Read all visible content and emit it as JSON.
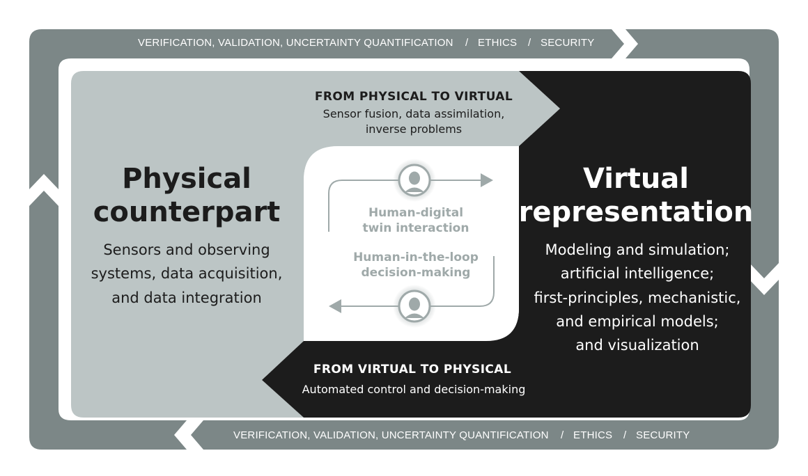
{
  "ring": {
    "top": {
      "item1": "VERIFICATION, VALIDATION, UNCERTAINTY QUANTIFICATION",
      "sep1": "/",
      "item2": "ETHICS",
      "sep2": "/",
      "item3": "SECURITY"
    },
    "bottom": {
      "item1": "VERIFICATION, VALIDATION, UNCERTAINTY QUANTIFICATION",
      "sep1": "/",
      "item2": "ETHICS",
      "sep2": "/",
      "item3": "SECURITY"
    }
  },
  "physical": {
    "title_line1": "Physical",
    "title_line2": "counterpart",
    "desc_line1": "Sensors and observing",
    "desc_line2": "systems, data acquisition,",
    "desc_line3": "and data integration"
  },
  "virtual": {
    "title_line1": "Virtual",
    "title_line2": "representation",
    "desc_line1": "Modeling and simulation;",
    "desc_line2": "artificial intelligence;",
    "desc_line3": "first-principles, mechanistic,",
    "desc_line4": "and empirical models;",
    "desc_line5": "and visualization"
  },
  "to_virtual": {
    "title": "FROM PHYSICAL TO VIRTUAL",
    "sub_line1": "Sensor fusion, data assimilation,",
    "sub_line2": "inverse problems"
  },
  "to_physical": {
    "title": "FROM VIRTUAL TO PHYSICAL",
    "sub_line1": "Automated control and decision-making"
  },
  "center": {
    "interaction_line1": "Human-digital",
    "interaction_line2": "twin interaction",
    "loop_line1": "Human-in-the-loop",
    "loop_line2": "decision-making"
  },
  "colors": {
    "ring": "#7c8787",
    "light_panel": "#bcc5c5",
    "dark_panel": "#1c1c1c",
    "center_text": "#9fa9a9"
  },
  "icons": [
    "person-icon",
    "person-icon"
  ]
}
